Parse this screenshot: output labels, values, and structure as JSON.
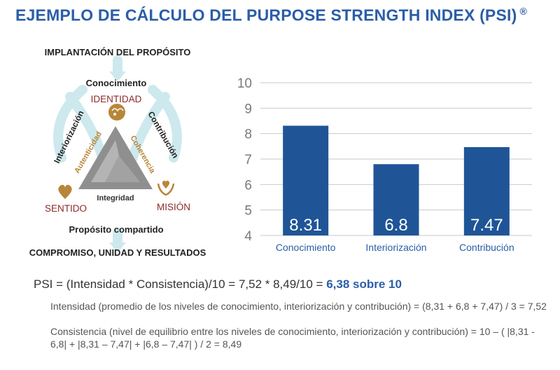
{
  "title": "EJEMPLO DE CÁLCULO DEL PURPOSE STRENGTH INDEX (PSI)",
  "title_mark": "®",
  "diagram": {
    "top_label": "IMPLANTACIÓN DEL PROPÓSITO",
    "conocimiento": "Conocimiento",
    "interiorizacion": "Interiorización",
    "contribucion": "Contribución",
    "identidad": "IDENTIDAD",
    "sentido": "SENTIDO",
    "mision": "MISIÓN",
    "autenticidad": "Autenticidad",
    "coherencia": "Coherencia",
    "integridad": "Integridad",
    "proposito": "Propósito compartido",
    "bottom_label": "COMPROMISO, UNIDAD Y RESULTADOS",
    "colors": {
      "dark_red": "#8b2a2a",
      "gold": "#b8863a",
      "arrows": "#cde9ee",
      "triangle": "#8f8f8f"
    }
  },
  "chart_data": {
    "type": "bar",
    "categories": [
      "Conocimiento",
      "Interiorización",
      "Contribución"
    ],
    "values": [
      8.31,
      6.8,
      7.47
    ],
    "value_labels": [
      "8.31",
      "6.8",
      "7.47"
    ],
    "ylim": [
      4,
      10
    ],
    "yticks": [
      4,
      5,
      6,
      7,
      8,
      9,
      10
    ],
    "grid": true,
    "bar_color": "#1f5597",
    "label_color": "#ffffff"
  },
  "formula": {
    "main": "PSI = (Intensidad * Consistencia)/10 = 7,52 * 8,49/10 = ",
    "result": "6,38 sobre 10"
  },
  "notes": {
    "intensidad": "Intensidad (promedio de los niveles de conocimiento, interiorización y contribución) = (8,31 + 6,8 + 7,47) / 3 = 7,52",
    "consistencia": "Consistencia (nivel de equilibrio entre los niveles de conocimiento, interiorización y contribución) = 10 – ( |8,31 - 6,8| + |8,31 – 7,47| + |6,8 – 7,47| ) / 2 = 8,49"
  }
}
